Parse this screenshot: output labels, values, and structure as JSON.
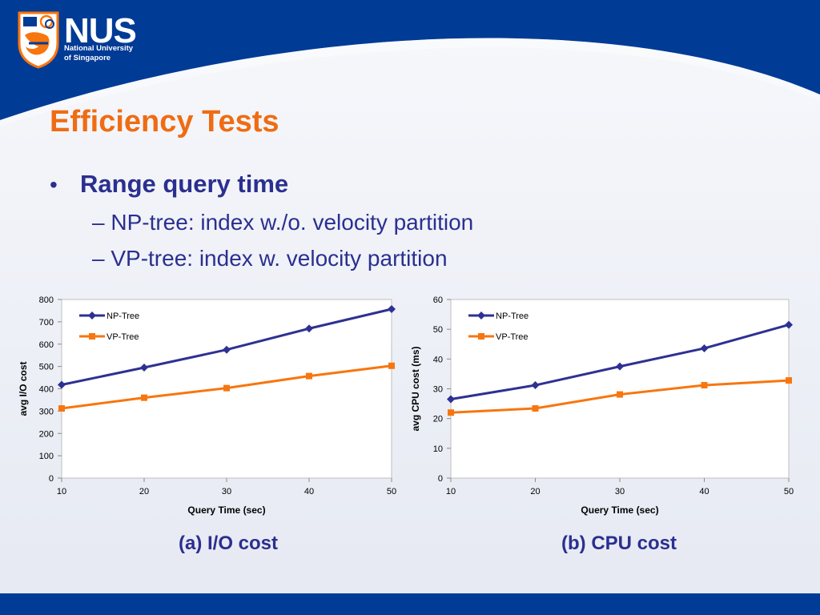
{
  "header": {
    "logo_main": "NUS",
    "logo_sub_line1": "National University",
    "logo_sub_line2": "of Singapore"
  },
  "slide": {
    "title": "Efficiency Tests",
    "bullet_symbol": "•",
    "bullet": "Range query time",
    "subbullets": [
      "– NP-tree: index w./o. velocity partition",
      "– VP-tree: index w. velocity partition"
    ],
    "captions": [
      "(a) I/O cost",
      "(b) CPU cost"
    ]
  },
  "colors": {
    "title": "#ef6c13",
    "body_text": "#2b2f8f",
    "header_blue": "#003b96",
    "np_tree": "#2e3192",
    "vp_tree": "#f7760f"
  },
  "chart_data": [
    {
      "type": "line",
      "title": "",
      "xlabel": "Query Time (sec)",
      "ylabel": "avg I/O cost",
      "x": [
        10,
        20,
        30,
        40,
        50
      ],
      "ylim": [
        0,
        800
      ],
      "yticks": [
        0,
        100,
        200,
        300,
        400,
        500,
        600,
        700,
        800
      ],
      "grid": false,
      "legend": "top-left",
      "series": [
        {
          "name": "NP-Tree",
          "marker": "diamond",
          "color": "#2e3192",
          "values": [
            418,
            495,
            575,
            670,
            757
          ]
        },
        {
          "name": "VP-Tree",
          "marker": "square",
          "color": "#f7760f",
          "values": [
            312,
            360,
            403,
            457,
            503
          ]
        }
      ]
    },
    {
      "type": "line",
      "title": "",
      "xlabel": "Query Time (sec)",
      "ylabel": "avg CPU cost (ms)",
      "x": [
        10,
        20,
        30,
        40,
        50
      ],
      "ylim": [
        0,
        60
      ],
      "yticks": [
        0,
        10,
        20,
        30,
        40,
        50,
        60
      ],
      "grid": false,
      "legend": "top-left",
      "series": [
        {
          "name": "NP-Tree",
          "marker": "diamond",
          "color": "#2e3192",
          "values": [
            26.5,
            31.2,
            37.5,
            43.6,
            51.5
          ]
        },
        {
          "name": "VP-Tree",
          "marker": "square",
          "color": "#f7760f",
          "values": [
            22,
            23.4,
            28.1,
            31.2,
            32.8
          ]
        }
      ]
    }
  ]
}
